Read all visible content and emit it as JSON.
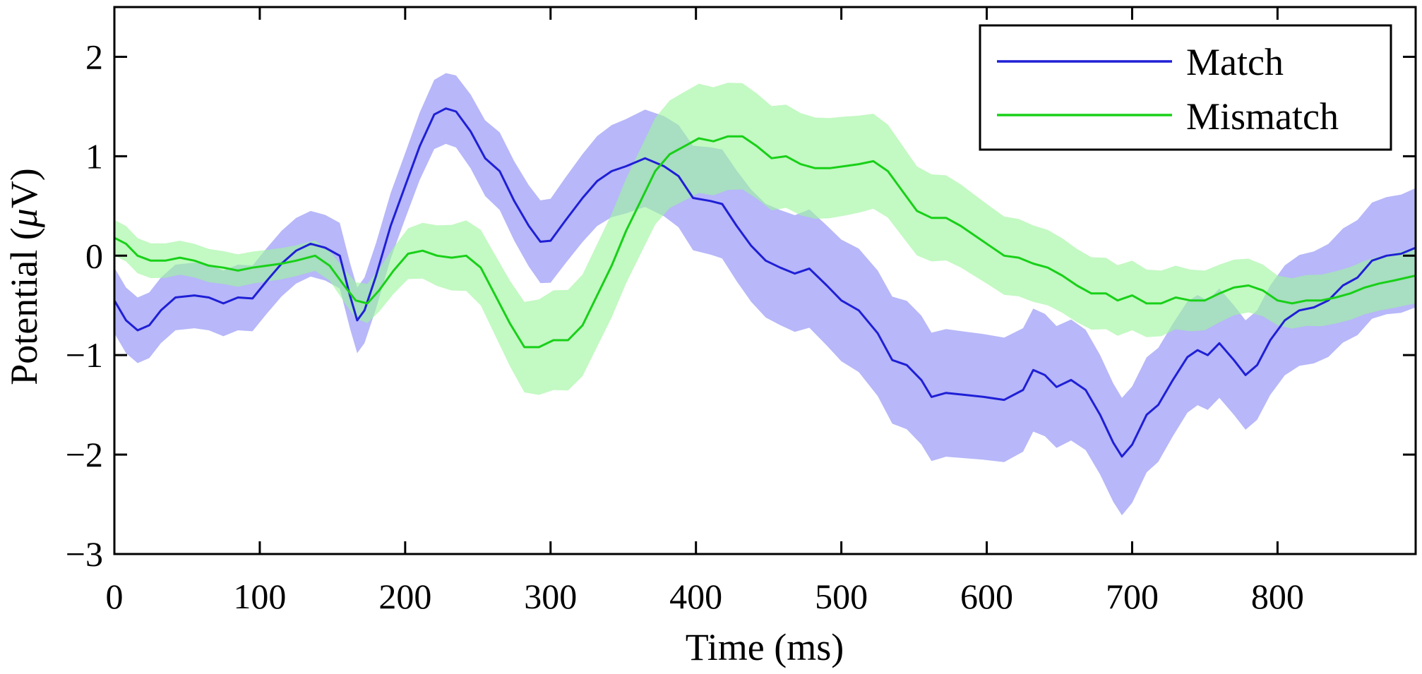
{
  "chart_data": {
    "type": "line",
    "title": "",
    "xlabel": "Time (ms)",
    "ylabel_prefix": "Potential (",
    "ylabel_symbol": "μ",
    "ylabel_suffix": "V)",
    "xlim": [
      0,
      895
    ],
    "ylim": [
      -3,
      2.5
    ],
    "xticks": [
      0,
      100,
      200,
      300,
      400,
      500,
      600,
      700,
      800
    ],
    "xtick_labels": [
      "0",
      "100",
      "200",
      "300",
      "400",
      "500",
      "600",
      "700",
      "800"
    ],
    "yticks": [
      -3,
      -2,
      -1,
      0,
      1,
      2
    ],
    "ytick_labels": [
      "−3",
      "−2",
      "−1",
      "0",
      "1",
      "2"
    ],
    "legend_position": "top-right",
    "grid": false,
    "series": [
      {
        "name": "Match",
        "color": "#1f1fd6",
        "band_color": "#8a8af5",
        "band_halfwidth": [
          [
            0,
            0.33
          ],
          [
            200,
            0.33
          ],
          [
            330,
            0.45
          ],
          [
            420,
            0.55
          ],
          [
            550,
            0.65
          ],
          [
            680,
            0.6
          ],
          [
            750,
            0.55
          ],
          [
            800,
            0.55
          ],
          [
            895,
            0.6
          ]
        ],
        "points": [
          [
            0,
            -0.45
          ],
          [
            8,
            -0.65
          ],
          [
            16,
            -0.75
          ],
          [
            24,
            -0.7
          ],
          [
            32,
            -0.55
          ],
          [
            42,
            -0.42
          ],
          [
            55,
            -0.4
          ],
          [
            65,
            -0.42
          ],
          [
            75,
            -0.48
          ],
          [
            85,
            -0.42
          ],
          [
            95,
            -0.43
          ],
          [
            105,
            -0.25
          ],
          [
            115,
            -0.08
          ],
          [
            125,
            0.05
          ],
          [
            135,
            0.12
          ],
          [
            145,
            0.08
          ],
          [
            155,
            0.0
          ],
          [
            162,
            -0.4
          ],
          [
            167,
            -0.65
          ],
          [
            172,
            -0.55
          ],
          [
            180,
            -0.2
          ],
          [
            190,
            0.3
          ],
          [
            200,
            0.7
          ],
          [
            210,
            1.1
          ],
          [
            220,
            1.42
          ],
          [
            228,
            1.48
          ],
          [
            235,
            1.45
          ],
          [
            245,
            1.25
          ],
          [
            255,
            0.98
          ],
          [
            265,
            0.85
          ],
          [
            275,
            0.55
          ],
          [
            285,
            0.3
          ],
          [
            293,
            0.14
          ],
          [
            300,
            0.15
          ],
          [
            310,
            0.35
          ],
          [
            322,
            0.58
          ],
          [
            332,
            0.75
          ],
          [
            342,
            0.85
          ],
          [
            352,
            0.9
          ],
          [
            365,
            0.98
          ],
          [
            378,
            0.9
          ],
          [
            388,
            0.8
          ],
          [
            398,
            0.58
          ],
          [
            410,
            0.55
          ],
          [
            418,
            0.52
          ],
          [
            428,
            0.3
          ],
          [
            438,
            0.1
          ],
          [
            448,
            -0.05
          ],
          [
            458,
            -0.12
          ],
          [
            468,
            -0.18
          ],
          [
            478,
            -0.13
          ],
          [
            490,
            -0.3
          ],
          [
            500,
            -0.45
          ],
          [
            512,
            -0.55
          ],
          [
            525,
            -0.78
          ],
          [
            535,
            -1.05
          ],
          [
            545,
            -1.1
          ],
          [
            555,
            -1.25
          ],
          [
            562,
            -1.42
          ],
          [
            572,
            -1.38
          ],
          [
            585,
            -1.4
          ],
          [
            598,
            -1.42
          ],
          [
            612,
            -1.45
          ],
          [
            625,
            -1.35
          ],
          [
            632,
            -1.15
          ],
          [
            640,
            -1.2
          ],
          [
            648,
            -1.32
          ],
          [
            658,
            -1.25
          ],
          [
            668,
            -1.35
          ],
          [
            678,
            -1.6
          ],
          [
            687,
            -1.88
          ],
          [
            693,
            -2.02
          ],
          [
            700,
            -1.9
          ],
          [
            710,
            -1.6
          ],
          [
            718,
            -1.5
          ],
          [
            728,
            -1.25
          ],
          [
            738,
            -1.02
          ],
          [
            745,
            -0.95
          ],
          [
            752,
            -1.0
          ],
          [
            760,
            -0.88
          ],
          [
            770,
            -1.05
          ],
          [
            778,
            -1.2
          ],
          [
            786,
            -1.1
          ],
          [
            795,
            -0.85
          ],
          [
            805,
            -0.65
          ],
          [
            815,
            -0.55
          ],
          [
            825,
            -0.52
          ],
          [
            835,
            -0.45
          ],
          [
            845,
            -0.3
          ],
          [
            855,
            -0.22
          ],
          [
            865,
            -0.05
          ],
          [
            875,
            0.0
          ],
          [
            885,
            0.02
          ],
          [
            895,
            0.08
          ]
        ]
      },
      {
        "name": "Mismatch",
        "color": "#18d018",
        "band_color": "#9ef59e",
        "band_halfwidth": [
          [
            0,
            0.18
          ],
          [
            150,
            0.15
          ],
          [
            200,
            0.25
          ],
          [
            300,
            0.5
          ],
          [
            400,
            0.55
          ],
          [
            500,
            0.5
          ],
          [
            600,
            0.4
          ],
          [
            700,
            0.35
          ],
          [
            800,
            0.25
          ],
          [
            895,
            0.28
          ]
        ],
        "points": [
          [
            0,
            0.18
          ],
          [
            8,
            0.12
          ],
          [
            16,
            0.0
          ],
          [
            25,
            -0.05
          ],
          [
            35,
            -0.05
          ],
          [
            45,
            -0.02
          ],
          [
            55,
            -0.05
          ],
          [
            65,
            -0.1
          ],
          [
            75,
            -0.12
          ],
          [
            85,
            -0.15
          ],
          [
            95,
            -0.12
          ],
          [
            105,
            -0.1
          ],
          [
            115,
            -0.08
          ],
          [
            125,
            -0.05
          ],
          [
            138,
            0.0
          ],
          [
            148,
            -0.1
          ],
          [
            158,
            -0.3
          ],
          [
            166,
            -0.45
          ],
          [
            174,
            -0.48
          ],
          [
            182,
            -0.35
          ],
          [
            192,
            -0.15
          ],
          [
            202,
            0.02
          ],
          [
            212,
            0.05
          ],
          [
            222,
            0.0
          ],
          [
            232,
            -0.02
          ],
          [
            242,
            0.0
          ],
          [
            252,
            -0.12
          ],
          [
            262,
            -0.4
          ],
          [
            272,
            -0.68
          ],
          [
            282,
            -0.92
          ],
          [
            292,
            -0.92
          ],
          [
            302,
            -0.85
          ],
          [
            312,
            -0.85
          ],
          [
            322,
            -0.7
          ],
          [
            332,
            -0.4
          ],
          [
            342,
            -0.1
          ],
          [
            352,
            0.25
          ],
          [
            362,
            0.55
          ],
          [
            372,
            0.85
          ],
          [
            382,
            1.02
          ],
          [
            392,
            1.1
          ],
          [
            402,
            1.18
          ],
          [
            412,
            1.15
          ],
          [
            422,
            1.2
          ],
          [
            432,
            1.2
          ],
          [
            442,
            1.1
          ],
          [
            452,
            0.98
          ],
          [
            462,
            1.0
          ],
          [
            472,
            0.92
          ],
          [
            482,
            0.88
          ],
          [
            492,
            0.88
          ],
          [
            502,
            0.9
          ],
          [
            512,
            0.92
          ],
          [
            522,
            0.95
          ],
          [
            532,
            0.85
          ],
          [
            542,
            0.65
          ],
          [
            552,
            0.45
          ],
          [
            562,
            0.38
          ],
          [
            572,
            0.38
          ],
          [
            582,
            0.3
          ],
          [
            592,
            0.2
          ],
          [
            602,
            0.1
          ],
          [
            612,
            0.0
          ],
          [
            622,
            -0.02
          ],
          [
            632,
            -0.08
          ],
          [
            642,
            -0.12
          ],
          [
            652,
            -0.2
          ],
          [
            662,
            -0.3
          ],
          [
            672,
            -0.38
          ],
          [
            682,
            -0.38
          ],
          [
            690,
            -0.45
          ],
          [
            700,
            -0.4
          ],
          [
            710,
            -0.48
          ],
          [
            720,
            -0.48
          ],
          [
            730,
            -0.42
          ],
          [
            740,
            -0.45
          ],
          [
            750,
            -0.45
          ],
          [
            760,
            -0.38
          ],
          [
            770,
            -0.32
          ],
          [
            780,
            -0.3
          ],
          [
            790,
            -0.35
          ],
          [
            800,
            -0.45
          ],
          [
            810,
            -0.48
          ],
          [
            820,
            -0.45
          ],
          [
            830,
            -0.45
          ],
          [
            840,
            -0.42
          ],
          [
            850,
            -0.38
          ],
          [
            860,
            -0.32
          ],
          [
            870,
            -0.28
          ],
          [
            880,
            -0.25
          ],
          [
            895,
            -0.2
          ]
        ]
      }
    ]
  }
}
